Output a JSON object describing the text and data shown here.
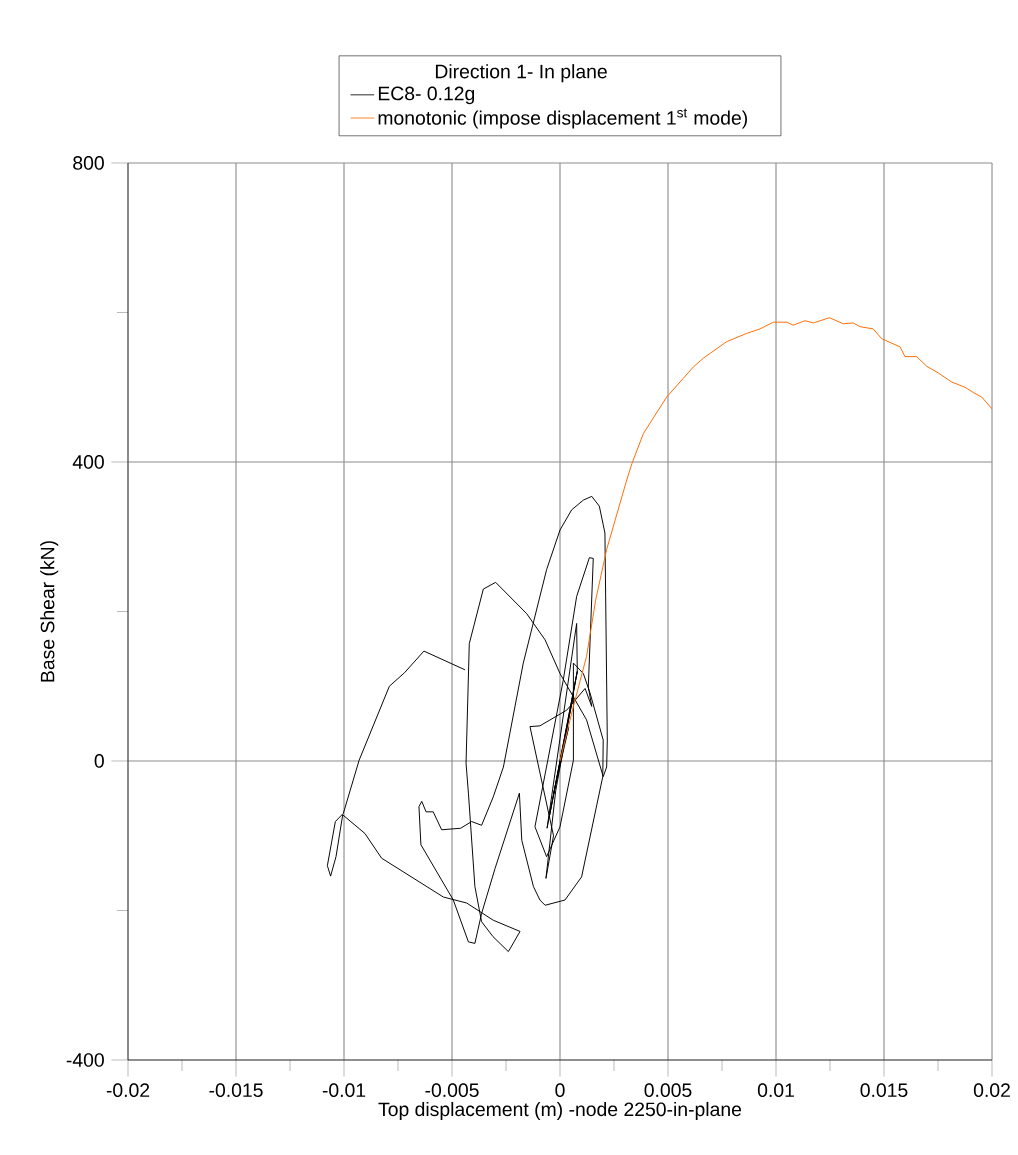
{
  "chart_data": {
    "type": "line",
    "xlabel": "Top displacement (m) -node 2250-in-plane",
    "ylabel": "Base Shear (kN)",
    "legend_title": "Direction 1- In plane",
    "legend": "top",
    "grid": true,
    "marker": "none",
    "line_style": "solid",
    "xlim": [
      -0.02,
      0.02
    ],
    "ylim": [
      -400,
      800
    ],
    "xticks": [
      -0.02,
      {
        "value": -0.0175,
        "label": null
      },
      -0.015,
      {
        "value": -0.0125,
        "label": null
      },
      -0.01,
      {
        "value": -0.0075,
        "label": null
      },
      -0.005,
      {
        "value": -0.0025,
        "label": null
      },
      0,
      {
        "value": 0.0025,
        "label": null
      },
      0.005,
      {
        "value": 0.0075,
        "label": null
      },
      0.01,
      {
        "value": 0.0125,
        "label": null
      },
      0.015,
      {
        "value": 0.0175,
        "label": null
      },
      0.02
    ],
    "yticks": [
      -400,
      {
        "value": -200,
        "label": null
      },
      0,
      {
        "value": 200,
        "label": null
      },
      400,
      {
        "value": 600,
        "label": null
      },
      800
    ],
    "series": [
      {
        "name": "EC8- 0.12g",
        "color": "#000000",
        "x": [
          0,
          0.0004,
          -0.0003,
          0.0006,
          -0.0005,
          0.0008,
          -0.0006,
          0.00077,
          0.0008,
          -0.0002,
          -0.00065,
          -0.0003,
          -0.00139,
          -0.00093,
          0.00031,
          0.00116,
          0.00147,
          0.00131,
          0.00154,
          0.00136,
          0.00077,
          0.00015,
          -0.00116,
          -0.00062,
          0,
          0.00062,
          0.00062,
          0.00108,
          0.00139,
          0.002,
          0.00198,
          0.001,
          0.00023,
          -0.00069,
          -0.00093,
          -0.00123,
          -0.00177,
          -0.00188,
          -0.00301,
          -0.00363,
          -0.00394,
          -0.00424,
          -0.00494,
          -0.00644,
          -0.00653,
          -0.0064,
          -0.0062,
          -0.00587,
          -0.00548,
          -0.0046,
          -0.00409,
          -0.00363,
          -0.00309,
          -0.00262,
          -0.0017,
          -0.00062,
          0,
          0.00054,
          0.00108,
          0.00147,
          0.00182,
          0.00208,
          0.00219,
          0.00216,
          0.002,
          0.00123,
          0,
          -0.00069,
          -0.00154,
          -0.00298,
          -0.00355,
          -0.0042,
          -0.00435,
          -0.00424,
          -0.00394,
          -0.00363,
          -0.0031,
          -0.00239,
          -0.00185,
          -0.00309,
          -0.00432,
          -0.0054,
          -0.00826,
          -0.00903,
          -0.01006,
          -0.01037,
          -0.01062,
          -0.01077,
          -0.0104,
          -0.01003,
          -0.0093,
          -0.0079,
          -0.0072,
          -0.0063,
          -0.0044
        ],
        "values": [
          0,
          45,
          -45,
          85,
          -75,
          120,
          -90,
          184,
          120,
          -40,
          -157,
          -100,
          46,
          47,
          68,
          97,
          73,
          99,
          271,
          272,
          220,
          108,
          -88,
          -128,
          -88,
          1,
          131,
          117,
          91,
          28,
          -21,
          -155,
          -186,
          -193,
          -186,
          -168,
          -106,
          -43,
          -144,
          -204,
          -244,
          -242,
          -186,
          -112,
          -61,
          -54,
          -68,
          -68,
          -92,
          -90,
          -81,
          -86,
          -48,
          -8,
          131,
          256,
          309,
          336,
          349,
          354,
          341,
          305,
          28,
          -8,
          -21,
          55,
          117,
          162,
          197,
          239,
          230,
          157,
          -3,
          -43,
          -168,
          -215,
          -235,
          -255,
          -228,
          -213,
          -190,
          -182,
          -130,
          -97,
          -72,
          -128,
          -154,
          -140,
          -81,
          -70,
          1,
          100,
          118,
          147,
          122
        ]
      },
      {
        "name": "monotonic (impose displacement 1$^{st}$ mode)",
        "color": "#ff6a00",
        "x": [
          0,
          0.00062,
          0.00123,
          0.00165,
          0.00216,
          0.00309,
          0.00333,
          0.00386,
          0.00494,
          0.00571,
          0.00617,
          0.00664,
          0.00772,
          0.00864,
          0.00926,
          0.00988,
          0.0105,
          0.0108,
          0.01134,
          0.01173,
          0.01247,
          0.01311,
          0.01358,
          0.01389,
          0.0145,
          0.01489,
          0.01574,
          0.01597,
          0.01651,
          0.01698,
          0.01752,
          0.01813,
          0.01875,
          0.01913,
          0.01952,
          0.02
        ],
        "values": [
          0,
          73,
          140,
          215,
          283,
          376,
          398,
          438,
          487,
          512,
          527,
          539,
          561,
          572,
          578,
          587,
          587,
          583,
          589,
          586,
          593,
          585,
          586,
          581,
          578,
          565,
          554,
          541,
          541,
          528,
          519,
          507,
          500,
          493,
          487,
          471
        ]
      }
    ]
  }
}
